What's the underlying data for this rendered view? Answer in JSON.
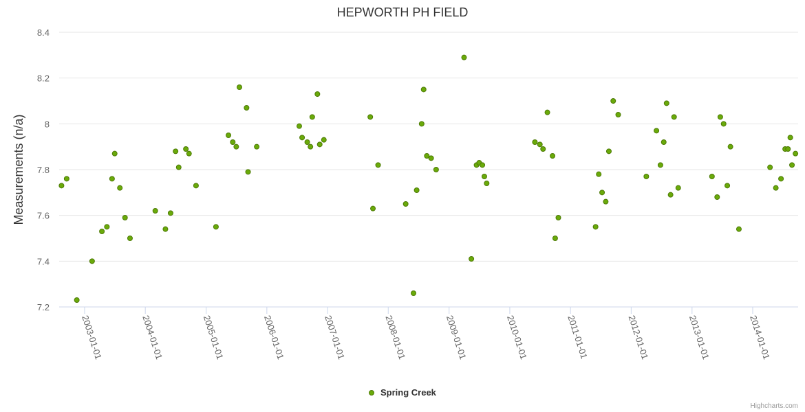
{
  "chart_data": {
    "type": "scatter",
    "title": "HEPWORTH PH FIELD",
    "xlabel": "",
    "ylabel": "Measurements (n/a)",
    "ylim": [
      7.2,
      8.4
    ],
    "yticks": [
      "7.2",
      "7.4",
      "7.6",
      "7.8",
      "8",
      "8.2",
      "8.4"
    ],
    "xlim": [
      "2002-08-01",
      "2014-10-01"
    ],
    "xticks": [
      "2003-01-01",
      "2004-01-01",
      "2005-01-01",
      "2006-01-01",
      "2007-01-01",
      "2008-01-01",
      "2009-01-01",
      "2010-01-01",
      "2011-01-01",
      "2012-01-01",
      "2013-01-01",
      "2014-01-01"
    ],
    "grid": true,
    "legend_position": "bottom-center",
    "series": [
      {
        "name": "Spring Creek",
        "color": "#6aaa0a",
        "points": [
          [
            "2002-08-15",
            7.73
          ],
          [
            "2002-09-15",
            7.76
          ],
          [
            "2002-11-15",
            7.23
          ],
          [
            "2003-02-15",
            7.4
          ],
          [
            "2003-04-15",
            7.53
          ],
          [
            "2003-05-15",
            7.55
          ],
          [
            "2003-06-15",
            7.76
          ],
          [
            "2003-07-01",
            7.87
          ],
          [
            "2003-08-01",
            7.72
          ],
          [
            "2003-09-01",
            7.59
          ],
          [
            "2003-10-01",
            7.5
          ],
          [
            "2004-03-01",
            7.62
          ],
          [
            "2004-05-01",
            7.54
          ],
          [
            "2004-06-01",
            7.61
          ],
          [
            "2004-07-01",
            7.88
          ],
          [
            "2004-07-20",
            7.81
          ],
          [
            "2004-09-01",
            7.89
          ],
          [
            "2004-09-20",
            7.87
          ],
          [
            "2004-11-01",
            7.73
          ],
          [
            "2005-03-01",
            7.55
          ],
          [
            "2005-05-15",
            7.95
          ],
          [
            "2005-06-10",
            7.92
          ],
          [
            "2005-07-01",
            7.9
          ],
          [
            "2005-07-20",
            8.16
          ],
          [
            "2005-09-01",
            8.07
          ],
          [
            "2005-09-10",
            7.79
          ],
          [
            "2005-11-01",
            7.9
          ],
          [
            "2006-07-15",
            7.99
          ],
          [
            "2006-08-01",
            7.94
          ],
          [
            "2006-09-01",
            7.92
          ],
          [
            "2006-09-20",
            7.9
          ],
          [
            "2006-10-01",
            8.03
          ],
          [
            "2006-11-01",
            8.13
          ],
          [
            "2006-11-15",
            7.91
          ],
          [
            "2006-12-10",
            7.93
          ],
          [
            "2007-09-15",
            8.03
          ],
          [
            "2007-10-01",
            7.63
          ],
          [
            "2007-11-01",
            7.82
          ],
          [
            "2008-04-15",
            7.65
          ],
          [
            "2008-06-01",
            7.26
          ],
          [
            "2008-06-20",
            7.71
          ],
          [
            "2008-07-20",
            8.0
          ],
          [
            "2008-08-01",
            8.15
          ],
          [
            "2008-08-20",
            7.86
          ],
          [
            "2008-09-15",
            7.85
          ],
          [
            "2008-10-15",
            7.8
          ],
          [
            "2009-04-01",
            8.29
          ],
          [
            "2009-05-15",
            7.41
          ],
          [
            "2009-06-15",
            7.82
          ],
          [
            "2009-07-01",
            7.83
          ],
          [
            "2009-07-20",
            7.82
          ],
          [
            "2009-08-01",
            7.77
          ],
          [
            "2009-08-15",
            7.74
          ],
          [
            "2010-06-01",
            7.92
          ],
          [
            "2010-07-01",
            7.91
          ],
          [
            "2010-07-20",
            7.89
          ],
          [
            "2010-08-15",
            8.05
          ],
          [
            "2010-09-15",
            7.86
          ],
          [
            "2010-10-01",
            7.5
          ],
          [
            "2010-10-20",
            7.59
          ],
          [
            "2011-06-01",
            7.55
          ],
          [
            "2011-06-20",
            7.78
          ],
          [
            "2011-07-10",
            7.7
          ],
          [
            "2011-08-01",
            7.66
          ],
          [
            "2011-08-20",
            7.88
          ],
          [
            "2011-09-15",
            8.1
          ],
          [
            "2011-10-15",
            8.04
          ],
          [
            "2012-04-01",
            7.77
          ],
          [
            "2012-06-01",
            7.97
          ],
          [
            "2012-06-25",
            7.82
          ],
          [
            "2012-07-15",
            7.92
          ],
          [
            "2012-08-01",
            8.09
          ],
          [
            "2012-08-25",
            7.69
          ],
          [
            "2012-09-15",
            8.03
          ],
          [
            "2012-10-10",
            7.72
          ],
          [
            "2013-05-01",
            7.77
          ],
          [
            "2013-06-01",
            7.68
          ],
          [
            "2013-06-20",
            8.03
          ],
          [
            "2013-07-10",
            8.0
          ],
          [
            "2013-08-01",
            7.73
          ],
          [
            "2013-08-20",
            7.9
          ],
          [
            "2013-10-10",
            7.54
          ],
          [
            "2014-04-15",
            7.81
          ],
          [
            "2014-05-20",
            7.72
          ],
          [
            "2014-06-20",
            7.76
          ],
          [
            "2014-07-15",
            7.89
          ],
          [
            "2014-08-01",
            7.89
          ],
          [
            "2014-08-15",
            7.94
          ],
          [
            "2014-08-25",
            7.82
          ],
          [
            "2014-09-15",
            7.87
          ]
        ]
      }
    ]
  },
  "credits": "Highcharts.com"
}
